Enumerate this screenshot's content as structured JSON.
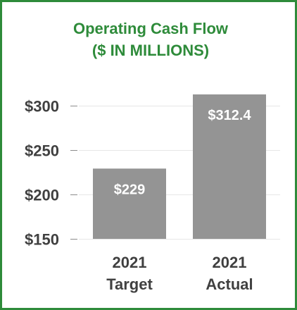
{
  "chart_data": {
    "type": "bar",
    "title_line1": "Operating Cash Flow",
    "title_line2": "($ IN MILLIONS)",
    "categories": [
      [
        "2021",
        "Target"
      ],
      [
        "2021",
        "Actual"
      ]
    ],
    "values": [
      229,
      312.4
    ],
    "data_labels": [
      "$229",
      "$312.4"
    ],
    "y_ticks": [
      150,
      200,
      250,
      300
    ],
    "y_tick_labels": [
      "$150",
      "$200",
      "$250",
      "$300"
    ],
    "ylim": [
      150,
      312.4
    ],
    "grid": true,
    "colors": {
      "bar": "#949494",
      "title": "#2e8b3a",
      "border": "#2e8b3a",
      "grid": "#e6e6e6",
      "text": "#404040"
    }
  }
}
